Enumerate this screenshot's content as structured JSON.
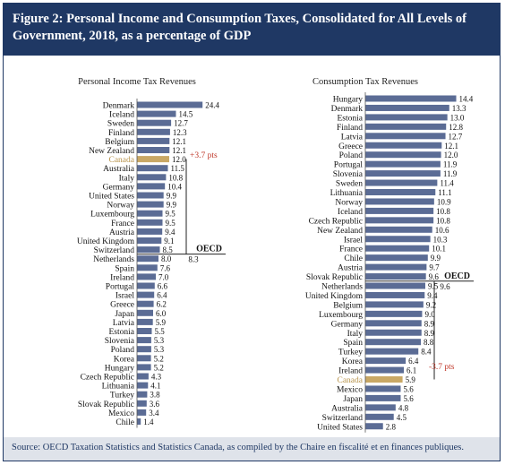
{
  "figure": {
    "title": "Figure 2: Personal Income and Consumption Taxes, Consolidated for All Levels of Government, 2018, as a percentage of GDP",
    "source": "Source: OECD Taxation Statistics and Statistics Canada, as compiled by the Chaire en fiscalité et en finances publiques."
  },
  "colors": {
    "bar": "#5b6c95",
    "highlight": "#c9a865",
    "highlight_text": "#b8934a",
    "annotation": "#c0392b",
    "header": "#1f3864"
  },
  "chart_data": [
    {
      "type": "bar",
      "orientation": "horizontal",
      "title": "Personal Income Tax Revenues",
      "highlight": "Canada",
      "categories": [
        "Denmark",
        "Iceland",
        "Sweden",
        "Finland",
        "Belgium",
        "New Zealand",
        "Canada",
        "Australia",
        "Italy",
        "Germany",
        "United States",
        "Norway",
        "Luxembourg",
        "France",
        "Austria",
        "United Kingdom",
        "Switzerland",
        "Netherlands",
        "Spain",
        "Ireland",
        "Portugal",
        "Israel",
        "Greece",
        "Japan",
        "Latvia",
        "Estonia",
        "Slovenia",
        "Poland",
        "Korea",
        "Hungary",
        "Czech Republic",
        "Lithuania",
        "Turkey",
        "Slovak Republic",
        "Mexico",
        "Chile"
      ],
      "values": [
        24.4,
        14.5,
        12.7,
        12.3,
        12.1,
        12.1,
        12.0,
        11.5,
        10.8,
        10.4,
        9.9,
        9.9,
        9.5,
        9.5,
        9.4,
        9.1,
        8.5,
        8.0,
        7.6,
        7.0,
        6.6,
        6.4,
        6.2,
        6.0,
        5.9,
        5.5,
        5.3,
        5.3,
        5.2,
        5.2,
        4.3,
        4.1,
        3.8,
        3.6,
        3.4,
        1.4
      ],
      "reference": {
        "label": "OECD",
        "value": 8.3,
        "value_label": "8.3"
      },
      "annotation": "+3.7 pts"
    },
    {
      "type": "bar",
      "orientation": "horizontal",
      "title": "Consumption Tax Revenues",
      "highlight": "Canada",
      "categories": [
        "Hungary",
        "Denmark",
        "Estonia",
        "Finland",
        "Latvia",
        "Greece",
        "Poland",
        "Portugal",
        "Slovenia",
        "Sweden",
        "Lithuania",
        "Norway",
        "Iceland",
        "Czech Republic",
        "New Zealand",
        "Israel",
        "France",
        "Chile",
        "Austria",
        "Slovak Republic",
        "Netherlands",
        "United Kingdom",
        "Belgium",
        "Luxembourg",
        "Germany",
        "Italy",
        "Spain",
        "Turkey",
        "Korea",
        "Ireland",
        "Canada",
        "Mexico",
        "Japan",
        "Australia",
        "Switzerland",
        "United States"
      ],
      "values": [
        14.4,
        13.3,
        13.0,
        12.8,
        12.7,
        12.1,
        12.0,
        11.9,
        11.9,
        11.4,
        11.1,
        10.9,
        10.8,
        10.8,
        10.6,
        10.3,
        10.1,
        9.9,
        9.7,
        9.6,
        9.5,
        9.4,
        9.2,
        9.0,
        8.9,
        8.9,
        8.8,
        8.4,
        6.4,
        6.1,
        5.9,
        5.6,
        5.6,
        4.8,
        4.5,
        2.8
      ],
      "reference": {
        "label": "OECD",
        "value": 9.6,
        "value_label": "9.6"
      },
      "annotation": "-3.7 pts"
    }
  ]
}
